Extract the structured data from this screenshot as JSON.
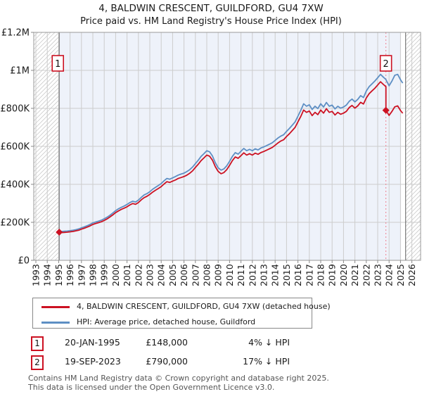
{
  "title": "4, BALDWIN CRESCENT, GUILDFORD, GU4 7XW",
  "subtitle": "Price paid vs. HM Land Registry's House Price Index (HPI)",
  "footer": {
    "line1": "Contains HM Land Registry data © Crown copyright and database right 2025.",
    "line2": "This data is licensed under the Open Government Licence v3.0."
  },
  "legend": [
    {
      "label": "4, BALDWIN CRESCENT, GUILDFORD, GU4 7XW (detached house)",
      "color": "#cc1122"
    },
    {
      "label": "HPI: Average price, detached house, Guildford",
      "color": "#5e8fc4"
    }
  ],
  "sales": [
    {
      "n": "1",
      "date": "20-JAN-1995",
      "price": "£148,000",
      "hpi": "4% ↓ HPI",
      "t": 1995.05,
      "value_k": 148
    },
    {
      "n": "2",
      "date": "19-SEP-2023",
      "price": "£790,000",
      "hpi": "17% ↓ HPI",
      "t": 2023.72,
      "value_k": 790
    }
  ],
  "chart_data": {
    "type": "line",
    "title": "4, BALDWIN CRESCENT, GUILDFORD, GU4 7XW",
    "subtitle": "Price paid vs. HM Land Registry's House Price Index (HPI)",
    "ylabel": "",
    "xlabel": "",
    "unit": "GBP thousands",
    "x_range": [
      1992.8,
      2026.8
    ],
    "ylim_k": [
      0,
      1200
    ],
    "ytick_values_k": [
      0,
      200,
      400,
      600,
      800,
      1000,
      1200
    ],
    "ytick_labels": [
      "£0",
      "£200K",
      "£400K",
      "£600K",
      "£800K",
      "£1M",
      "£1.2M"
    ],
    "xticks": [
      1993,
      1994,
      1995,
      1996,
      1997,
      1998,
      1999,
      2000,
      2001,
      2002,
      2003,
      2004,
      2005,
      2006,
      2007,
      2008,
      2009,
      2010,
      2011,
      2012,
      2013,
      2014,
      2015,
      2016,
      2017,
      2018,
      2019,
      2020,
      2021,
      2022,
      2023,
      2024,
      2025,
      2026
    ],
    "grid": true,
    "legend_position": "bottom",
    "data_start_t": 1995.05,
    "data_end_t": 2025.2,
    "shade_end_t": 2025.05,
    "hatch_right_start_t": 2025.45,
    "sale2_line_t": 2023.72,
    "colors": {
      "property": "#cc1122",
      "hpi": "#5e8fc4",
      "plot_tint": "#eef2fa",
      "grid": "#cccccc",
      "hatch": "#c9c9c9",
      "border": "#999999",
      "boundary": "#777777",
      "dotted_sale_line": "#f08090",
      "axis_text": "#1a1a1a"
    },
    "series": [
      {
        "name": "4, BALDWIN CRESCENT, GUILDFORD, GU4 7XW (detached house)",
        "color": "#cc1122",
        "points_t_valk": [
          [
            1995.05,
            148
          ],
          [
            1995.25,
            146
          ],
          [
            1995.5,
            147
          ],
          [
            1995.75,
            148
          ],
          [
            1996,
            150
          ],
          [
            1996.25,
            152
          ],
          [
            1996.5,
            155
          ],
          [
            1996.75,
            158
          ],
          [
            1997,
            164
          ],
          [
            1997.25,
            169
          ],
          [
            1997.5,
            175
          ],
          [
            1997.75,
            181
          ],
          [
            1998,
            189
          ],
          [
            1998.25,
            194
          ],
          [
            1998.5,
            198
          ],
          [
            1998.75,
            203
          ],
          [
            1999,
            210
          ],
          [
            1999.25,
            218
          ],
          [
            1999.5,
            228
          ],
          [
            1999.75,
            239
          ],
          [
            2000,
            251
          ],
          [
            2000.25,
            260
          ],
          [
            2000.5,
            268
          ],
          [
            2000.75,
            275
          ],
          [
            2001,
            282
          ],
          [
            2001.25,
            292
          ],
          [
            2001.5,
            299
          ],
          [
            2001.75,
            295
          ],
          [
            2002,
            304
          ],
          [
            2002.25,
            318
          ],
          [
            2002.5,
            330
          ],
          [
            2002.75,
            337
          ],
          [
            2003,
            347
          ],
          [
            2003.25,
            359
          ],
          [
            2003.5,
            369
          ],
          [
            2003.75,
            378
          ],
          [
            2004,
            388
          ],
          [
            2004.25,
            402
          ],
          [
            2004.5,
            414
          ],
          [
            2004.75,
            410
          ],
          [
            2005,
            417
          ],
          [
            2005.25,
            423
          ],
          [
            2005.5,
            431
          ],
          [
            2005.75,
            436
          ],
          [
            2006,
            441
          ],
          [
            2006.25,
            448
          ],
          [
            2006.5,
            458
          ],
          [
            2006.75,
            471
          ],
          [
            2007,
            489
          ],
          [
            2007.25,
            506
          ],
          [
            2007.5,
            525
          ],
          [
            2007.75,
            539
          ],
          [
            2008,
            554
          ],
          [
            2008.25,
            548
          ],
          [
            2008.5,
            527
          ],
          [
            2008.75,
            493
          ],
          [
            2009,
            468
          ],
          [
            2009.25,
            456
          ],
          [
            2009.5,
            462
          ],
          [
            2009.75,
            477
          ],
          [
            2010,
            500
          ],
          [
            2010.25,
            525
          ],
          [
            2010.5,
            544
          ],
          [
            2010.75,
            537
          ],
          [
            2011,
            551
          ],
          [
            2011.25,
            566
          ],
          [
            2011.5,
            554
          ],
          [
            2011.75,
            561
          ],
          [
            2012,
            554
          ],
          [
            2012.25,
            564
          ],
          [
            2012.5,
            558
          ],
          [
            2012.75,
            567
          ],
          [
            2013,
            573
          ],
          [
            2013.25,
            580
          ],
          [
            2013.5,
            587
          ],
          [
            2013.75,
            594
          ],
          [
            2014,
            606
          ],
          [
            2014.25,
            618
          ],
          [
            2014.5,
            628
          ],
          [
            2014.75,
            635
          ],
          [
            2015,
            652
          ],
          [
            2015.25,
            666
          ],
          [
            2015.5,
            683
          ],
          [
            2015.75,
            700
          ],
          [
            2016,
            729
          ],
          [
            2016.25,
            757
          ],
          [
            2016.5,
            791
          ],
          [
            2016.75,
            779
          ],
          [
            2017,
            786
          ],
          [
            2017.25,
            762
          ],
          [
            2017.5,
            779
          ],
          [
            2017.75,
            767
          ],
          [
            2018,
            791
          ],
          [
            2018.25,
            775
          ],
          [
            2018.5,
            798
          ],
          [
            2018.75,
            779
          ],
          [
            2019,
            784
          ],
          [
            2019.25,
            765
          ],
          [
            2019.5,
            779
          ],
          [
            2019.75,
            769
          ],
          [
            2020,
            775
          ],
          [
            2020.25,
            784
          ],
          [
            2020.5,
            804
          ],
          [
            2020.75,
            815
          ],
          [
            2021,
            801
          ],
          [
            2021.25,
            813
          ],
          [
            2021.5,
            832
          ],
          [
            2021.75,
            823
          ],
          [
            2022,
            855
          ],
          [
            2022.25,
            877
          ],
          [
            2022.5,
            892
          ],
          [
            2022.75,
            906
          ],
          [
            2023,
            923
          ],
          [
            2023.25,
            940
          ],
          [
            2023.5,
            926
          ],
          [
            2023.72,
            914
          ],
          [
            2023.72,
            790
          ],
          [
            2023.75,
            787
          ],
          [
            2024,
            763
          ],
          [
            2024.25,
            784
          ],
          [
            2024.5,
            808
          ],
          [
            2024.75,
            813
          ],
          [
            2025,
            789
          ],
          [
            2025.2,
            774
          ]
        ]
      },
      {
        "name": "HPI: Average price, detached house, Guildford",
        "color": "#5e8fc4",
        "points_t_valk": [
          [
            1995.05,
            154
          ],
          [
            1995.25,
            152
          ],
          [
            1995.5,
            153
          ],
          [
            1995.75,
            154
          ],
          [
            1996,
            156
          ],
          [
            1996.25,
            158
          ],
          [
            1996.5,
            161
          ],
          [
            1996.75,
            165
          ],
          [
            1997,
            171
          ],
          [
            1997.25,
            176
          ],
          [
            1997.5,
            182
          ],
          [
            1997.75,
            189
          ],
          [
            1998,
            197
          ],
          [
            1998.25,
            202
          ],
          [
            1998.5,
            206
          ],
          [
            1998.75,
            211
          ],
          [
            1999,
            219
          ],
          [
            1999.25,
            227
          ],
          [
            1999.5,
            237
          ],
          [
            1999.75,
            249
          ],
          [
            2000,
            261
          ],
          [
            2000.25,
            271
          ],
          [
            2000.5,
            279
          ],
          [
            2000.75,
            286
          ],
          [
            2001,
            294
          ],
          [
            2001.25,
            304
          ],
          [
            2001.5,
            311
          ],
          [
            2001.75,
            307
          ],
          [
            2002,
            317
          ],
          [
            2002.25,
            331
          ],
          [
            2002.5,
            344
          ],
          [
            2002.75,
            351
          ],
          [
            2003,
            361
          ],
          [
            2003.25,
            374
          ],
          [
            2003.5,
            384
          ],
          [
            2003.75,
            394
          ],
          [
            2004,
            404
          ],
          [
            2004.25,
            419
          ],
          [
            2004.5,
            431
          ],
          [
            2004.75,
            427
          ],
          [
            2005,
            434
          ],
          [
            2005.25,
            441
          ],
          [
            2005.5,
            449
          ],
          [
            2005.75,
            454
          ],
          [
            2006,
            459
          ],
          [
            2006.25,
            467
          ],
          [
            2006.5,
            477
          ],
          [
            2006.75,
            491
          ],
          [
            2007,
            509
          ],
          [
            2007.25,
            527
          ],
          [
            2007.5,
            547
          ],
          [
            2007.75,
            561
          ],
          [
            2008,
            577
          ],
          [
            2008.25,
            571
          ],
          [
            2008.5,
            549
          ],
          [
            2008.75,
            514
          ],
          [
            2009,
            487
          ],
          [
            2009.25,
            475
          ],
          [
            2009.5,
            481
          ],
          [
            2009.75,
            497
          ],
          [
            2010,
            521
          ],
          [
            2010.25,
            547
          ],
          [
            2010.5,
            567
          ],
          [
            2010.75,
            559
          ],
          [
            2011,
            574
          ],
          [
            2011.25,
            589
          ],
          [
            2011.5,
            577
          ],
          [
            2011.75,
            584
          ],
          [
            2012,
            577
          ],
          [
            2012.25,
            587
          ],
          [
            2012.5,
            581
          ],
          [
            2012.75,
            591
          ],
          [
            2013,
            597
          ],
          [
            2013.25,
            604
          ],
          [
            2013.5,
            611
          ],
          [
            2013.75,
            619
          ],
          [
            2014,
            631
          ],
          [
            2014.25,
            644
          ],
          [
            2014.5,
            654
          ],
          [
            2014.75,
            661
          ],
          [
            2015,
            679
          ],
          [
            2015.25,
            694
          ],
          [
            2015.5,
            711
          ],
          [
            2015.75,
            729
          ],
          [
            2016,
            759
          ],
          [
            2016.25,
            789
          ],
          [
            2016.5,
            824
          ],
          [
            2016.75,
            811
          ],
          [
            2017,
            819
          ],
          [
            2017.25,
            794
          ],
          [
            2017.5,
            811
          ],
          [
            2017.75,
            799
          ],
          [
            2018,
            824
          ],
          [
            2018.25,
            807
          ],
          [
            2018.5,
            831
          ],
          [
            2018.75,
            811
          ],
          [
            2019,
            817
          ],
          [
            2019.25,
            797
          ],
          [
            2019.5,
            811
          ],
          [
            2019.75,
            801
          ],
          [
            2020,
            807
          ],
          [
            2020.25,
            817
          ],
          [
            2020.5,
            837
          ],
          [
            2020.75,
            849
          ],
          [
            2021,
            834
          ],
          [
            2021.25,
            847
          ],
          [
            2021.5,
            867
          ],
          [
            2021.75,
            857
          ],
          [
            2022,
            891
          ],
          [
            2022.25,
            914
          ],
          [
            2022.5,
            929
          ],
          [
            2022.75,
            944
          ],
          [
            2023,
            961
          ],
          [
            2023.25,
            979
          ],
          [
            2023.5,
            964
          ],
          [
            2023.72,
            952
          ],
          [
            2023.75,
            948
          ],
          [
            2024,
            919
          ],
          [
            2024.25,
            944
          ],
          [
            2024.5,
            974
          ],
          [
            2024.75,
            979
          ],
          [
            2025,
            951
          ],
          [
            2025.2,
            933
          ]
        ]
      }
    ],
    "markers": [
      {
        "n": "1",
        "t": 1995.05,
        "value_k": 148
      },
      {
        "n": "2",
        "t": 2023.72,
        "value_k": 790
      }
    ]
  }
}
